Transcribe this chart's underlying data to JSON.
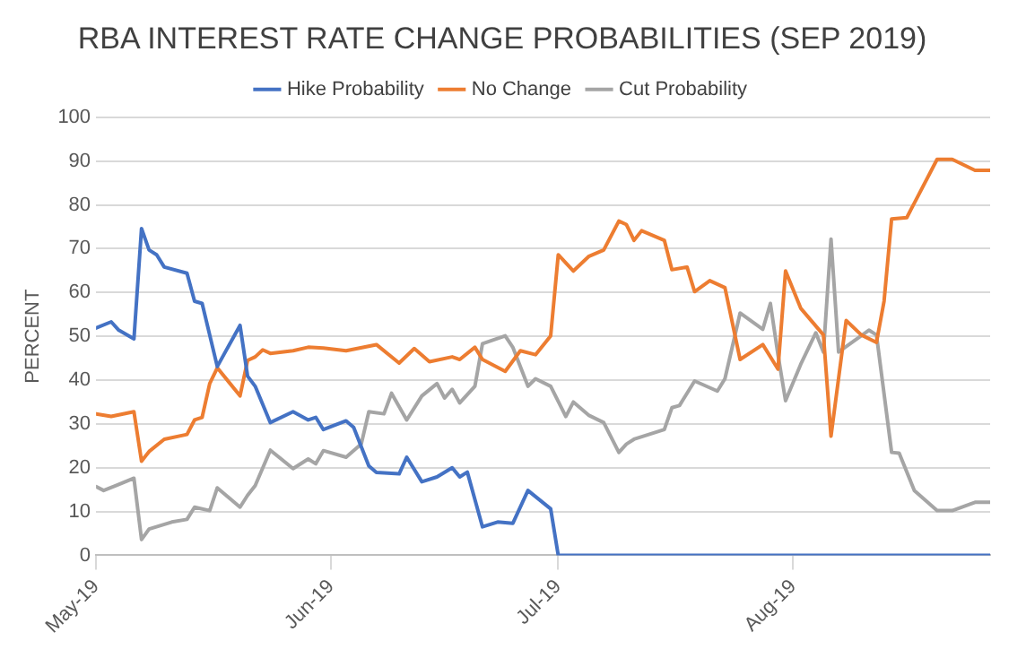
{
  "chart_data": {
    "type": "line",
    "title": "RBA INTEREST RATE CHANGE PROBABILITIES (SEP 2019)",
    "ylabel": "PERCENT",
    "xlim": [
      "2019-05-01",
      "2019-08-27"
    ],
    "xticks": [
      {
        "value": "2019-05-01",
        "label": "May-19"
      },
      {
        "value": "2019-06-01",
        "label": "Jun-19"
      },
      {
        "value": "2019-07-01",
        "label": "Jul-19"
      },
      {
        "value": "2019-08-01",
        "label": "Aug-19"
      }
    ],
    "ylim": [
      0,
      100
    ],
    "yticks": [
      0,
      10,
      20,
      30,
      40,
      50,
      60,
      70,
      80,
      90,
      100
    ],
    "grid": "y",
    "legend": "top",
    "marker": "none",
    "line_style": "solid",
    "series": [
      {
        "name": "Hike Probability",
        "color": "#4472c4",
        "x": [
          "2019-05-01",
          "2019-05-03",
          "2019-05-04",
          "2019-05-06",
          "2019-05-07",
          "2019-05-08",
          "2019-05-09",
          "2019-05-10",
          "2019-05-13",
          "2019-05-14",
          "2019-05-15",
          "2019-05-17",
          "2019-05-20",
          "2019-05-21",
          "2019-05-22",
          "2019-05-24",
          "2019-05-27",
          "2019-05-29",
          "2019-05-30",
          "2019-05-31",
          "2019-06-03",
          "2019-06-04",
          "2019-06-06",
          "2019-06-07",
          "2019-06-10",
          "2019-06-11",
          "2019-06-13",
          "2019-06-15",
          "2019-06-17",
          "2019-06-18",
          "2019-06-19",
          "2019-06-21",
          "2019-06-23",
          "2019-06-25",
          "2019-06-27",
          "2019-06-30",
          "2019-07-01",
          "2019-08-27"
        ],
        "values": [
          51.9,
          53.3,
          51.4,
          49.4,
          74.6,
          69.7,
          68.6,
          65.8,
          64.4,
          58.0,
          57.5,
          43.1,
          52.5,
          40.9,
          38.6,
          30.3,
          32.8,
          30.9,
          31.5,
          28.7,
          30.7,
          29.2,
          20.4,
          18.9,
          18.6,
          22.4,
          16.8,
          17.9,
          20.0,
          17.9,
          19.0,
          6.5,
          7.6,
          7.3,
          14.8,
          10.6,
          0,
          0
        ]
      },
      {
        "name": "No Change",
        "color": "#ed7d31",
        "x": [
          "2019-05-01",
          "2019-05-03",
          "2019-05-06",
          "2019-05-07",
          "2019-05-08",
          "2019-05-10",
          "2019-05-13",
          "2019-05-14",
          "2019-05-15",
          "2019-05-16",
          "2019-05-17",
          "2019-05-20",
          "2019-05-21",
          "2019-05-22",
          "2019-05-23",
          "2019-05-24",
          "2019-05-27",
          "2019-05-29",
          "2019-05-31",
          "2019-06-03",
          "2019-06-07",
          "2019-06-10",
          "2019-06-12",
          "2019-06-14",
          "2019-06-17",
          "2019-06-18",
          "2019-06-20",
          "2019-06-21",
          "2019-06-24",
          "2019-06-26",
          "2019-06-28",
          "2019-06-30",
          "2019-07-01",
          "2019-07-03",
          "2019-07-05",
          "2019-07-07",
          "2019-07-09",
          "2019-07-10",
          "2019-07-11",
          "2019-07-12",
          "2019-07-15",
          "2019-07-16",
          "2019-07-18",
          "2019-07-19",
          "2019-07-21",
          "2019-07-23",
          "2019-07-25",
          "2019-07-28",
          "2019-07-30",
          "2019-07-31",
          "2019-08-02",
          "2019-08-05",
          "2019-08-06",
          "2019-08-08",
          "2019-08-10",
          "2019-08-12",
          "2019-08-13",
          "2019-08-14",
          "2019-08-16",
          "2019-08-20",
          "2019-08-22",
          "2019-08-25",
          "2019-08-27"
        ],
        "values": [
          32.3,
          31.7,
          32.8,
          21.5,
          23.7,
          26.5,
          27.6,
          30.9,
          31.5,
          39.2,
          42.8,
          36.4,
          44.5,
          45.3,
          46.9,
          46.1,
          46.7,
          47.5,
          47.3,
          46.7,
          48.1,
          43.9,
          47.2,
          44.2,
          45.3,
          44.7,
          47.5,
          44.7,
          42.0,
          46.7,
          45.8,
          50.1,
          68.6,
          64.9,
          68.2,
          69.7,
          76.3,
          75.5,
          71.9,
          74.1,
          71.9,
          65.2,
          65.8,
          60.2,
          62.7,
          61.1,
          44.7,
          48.1,
          42.5,
          64.9,
          56.4,
          50.3,
          27.2,
          53.6,
          50.3,
          48.6,
          58.0,
          76.8,
          77.1,
          90.4,
          90.4,
          87.9,
          87.9
        ]
      },
      {
        "name": "Cut Probability",
        "color": "#a5a5a5",
        "x": [
          "2019-05-01",
          "2019-05-02",
          "2019-05-04",
          "2019-05-06",
          "2019-05-07",
          "2019-05-08",
          "2019-05-11",
          "2019-05-13",
          "2019-05-14",
          "2019-05-16",
          "2019-05-17",
          "2019-05-20",
          "2019-05-21",
          "2019-05-22",
          "2019-05-24",
          "2019-05-27",
          "2019-05-29",
          "2019-05-30",
          "2019-05-31",
          "2019-06-03",
          "2019-06-05",
          "2019-06-06",
          "2019-06-08",
          "2019-06-09",
          "2019-06-11",
          "2019-06-13",
          "2019-06-15",
          "2019-06-16",
          "2019-06-17",
          "2019-06-18",
          "2019-06-20",
          "2019-06-21",
          "2019-06-24",
          "2019-06-25",
          "2019-06-27",
          "2019-06-28",
          "2019-06-30",
          "2019-07-02",
          "2019-07-03",
          "2019-07-05",
          "2019-07-07",
          "2019-07-09",
          "2019-07-10",
          "2019-07-11",
          "2019-07-15",
          "2019-07-16",
          "2019-07-17",
          "2019-07-19",
          "2019-07-22",
          "2019-07-23",
          "2019-07-25",
          "2019-07-28",
          "2019-07-29",
          "2019-07-30",
          "2019-07-31",
          "2019-08-02",
          "2019-08-04",
          "2019-08-05",
          "2019-08-06",
          "2019-08-07",
          "2019-08-11",
          "2019-08-12",
          "2019-08-14",
          "2019-08-15",
          "2019-08-17",
          "2019-08-20",
          "2019-08-22",
          "2019-08-25",
          "2019-08-27"
        ],
        "values": [
          15.7,
          14.8,
          16.2,
          17.6,
          3.6,
          6.0,
          7.6,
          8.2,
          11.0,
          10.2,
          15.4,
          11.0,
          13.7,
          15.9,
          24.0,
          19.8,
          22.0,
          20.9,
          23.9,
          22.4,
          25.4,
          32.8,
          32.3,
          37.0,
          30.9,
          36.4,
          39.2,
          35.9,
          37.9,
          34.8,
          38.6,
          48.3,
          50.1,
          47.5,
          38.6,
          40.3,
          38.6,
          31.7,
          35.0,
          32.0,
          30.3,
          23.5,
          25.4,
          26.5,
          28.7,
          33.7,
          34.2,
          39.8,
          37.5,
          40.3,
          55.3,
          51.6,
          57.5,
          45.8,
          35.3,
          43.6,
          50.8,
          46.4,
          72.2,
          46.4,
          51.4,
          50.3,
          23.5,
          23.3,
          14.8,
          10.2,
          10.2,
          12.1,
          12.1
        ]
      }
    ]
  }
}
